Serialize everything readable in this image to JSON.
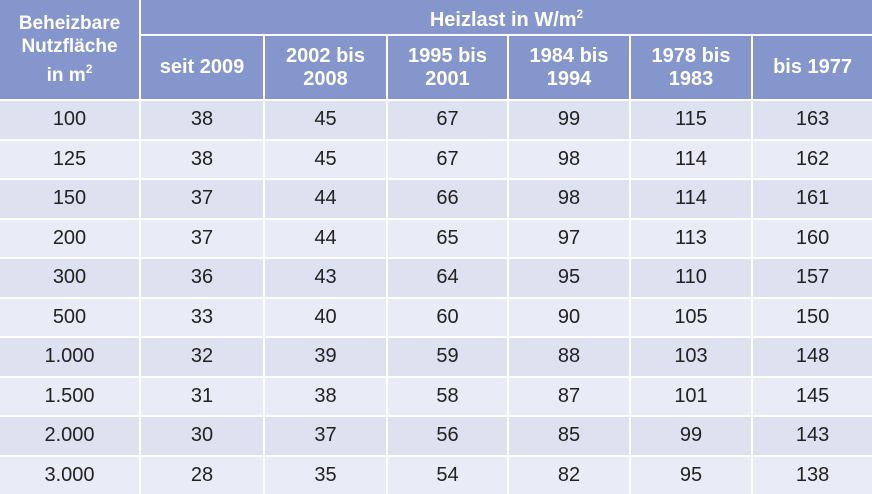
{
  "header": {
    "corner_label": {
      "line1": "Beheizbare",
      "line2": "Nutzfläche",
      "line3": "in m",
      "sup": "2"
    },
    "group_label": {
      "text": "Heizlast in W/m",
      "sup": "2"
    },
    "columns": [
      {
        "line1": "seit 2009",
        "line2": ""
      },
      {
        "line1": "2002 bis",
        "line2": "2008"
      },
      {
        "line1": "1995 bis",
        "line2": "2001"
      },
      {
        "line1": "1984 bis",
        "line2": "1994"
      },
      {
        "line1": "1978 bis",
        "line2": "1983"
      },
      {
        "line1": "bis 1977",
        "line2": ""
      }
    ]
  },
  "rows": [
    [
      "100",
      "38",
      "45",
      "67",
      "99",
      "115",
      "163"
    ],
    [
      "125",
      "38",
      "45",
      "67",
      "98",
      "114",
      "162"
    ],
    [
      "150",
      "37",
      "44",
      "66",
      "98",
      "114",
      "161"
    ],
    [
      "200",
      "37",
      "44",
      "65",
      "97",
      "113",
      "160"
    ],
    [
      "300",
      "36",
      "43",
      "64",
      "95",
      "110",
      "157"
    ],
    [
      "500",
      "33",
      "40",
      "60",
      "90",
      "105",
      "150"
    ],
    [
      "1.000",
      "32",
      "39",
      "59",
      "88",
      "103",
      "148"
    ],
    [
      "1.500",
      "31",
      "38",
      "58",
      "87",
      "101",
      "145"
    ],
    [
      "2.000",
      "30",
      "37",
      "56",
      "85",
      "99",
      "143"
    ],
    [
      "3.000",
      "28",
      "35",
      "54",
      "82",
      "95",
      "138"
    ]
  ],
  "colors": {
    "header_bg": "#8496cc",
    "row_odd": "#dde1f0",
    "row_even": "#e9ecf6"
  }
}
